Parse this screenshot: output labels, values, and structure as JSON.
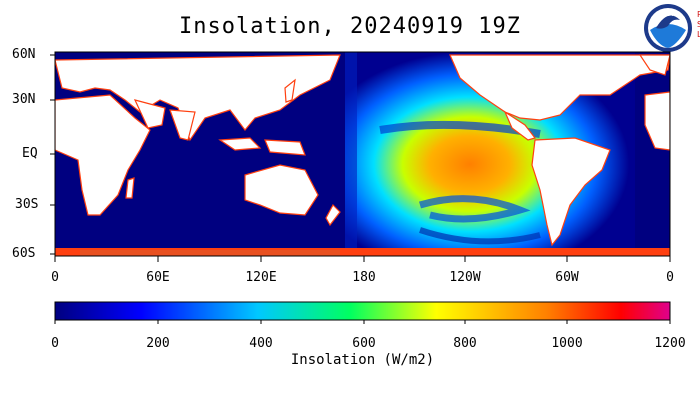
{
  "title": "Insolation, 20240919 19Z",
  "logo": {
    "icon": "noaa-logo",
    "text": "NOAA",
    "side_letters": [
      "P",
      "S",
      "L"
    ]
  },
  "map": {
    "lat_labels": [
      "60N",
      "30N",
      "EQ",
      "30S",
      "60S"
    ],
    "lon_labels": [
      "0",
      "60E",
      "120E",
      "180",
      "120W",
      "60W",
      "0"
    ],
    "land_color": "#ffffff",
    "ocean_low_color": "#000080"
  },
  "colorbar": {
    "ticks": [
      "0",
      "200",
      "400",
      "600",
      "800",
      "1000",
      "1200"
    ],
    "min": 0,
    "max": 1200,
    "label": "Insolation (W/m2)",
    "colors": [
      "#000080",
      "#0000ff",
      "#00c8ff",
      "#00ff60",
      "#ffff00",
      "#ff8000",
      "#ff0000",
      "#e0008c"
    ]
  }
}
